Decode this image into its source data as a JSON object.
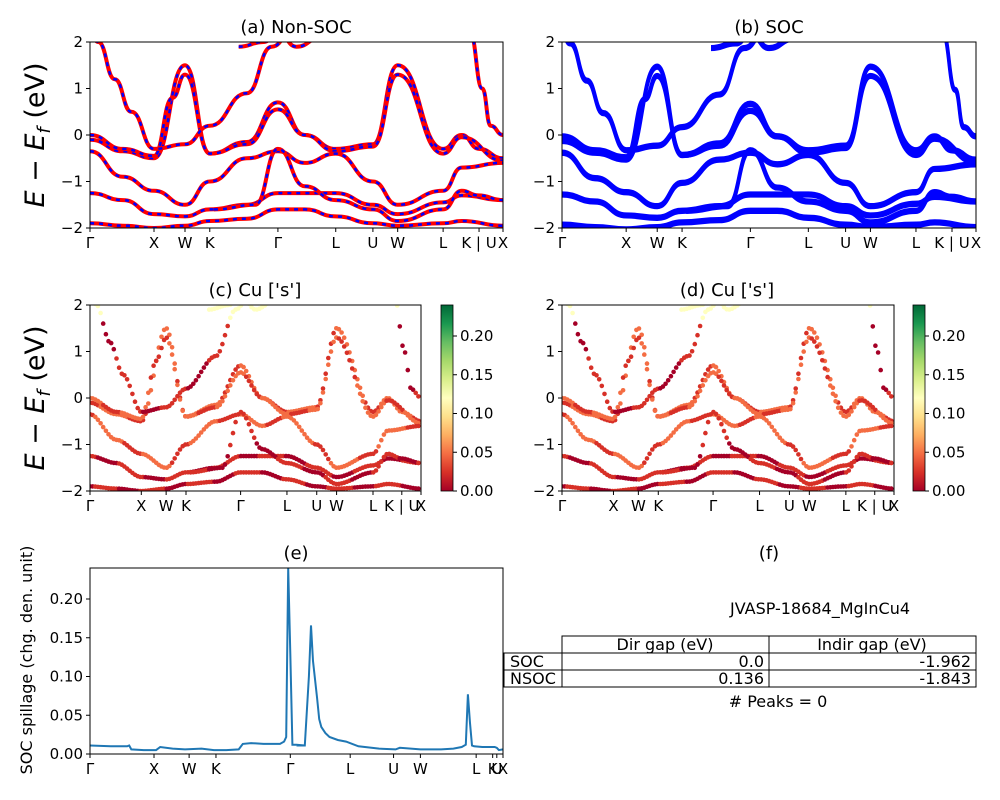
{
  "chart_data": [
    {
      "type": "line",
      "title": "(a) Non-SOC",
      "ylabel_main": "E − E",
      "ylabel_sub": "f",
      "ylabel_unit": " (eV)",
      "ylim": [
        -2,
        2
      ],
      "yticks": [
        "2",
        "1",
        "0",
        "−1",
        "−2"
      ],
      "xticks": [
        "Γ",
        "X",
        "W",
        "K",
        "Γ",
        "L",
        "U",
        "W",
        "L",
        "K | U",
        "X"
      ],
      "xtick_pos": [
        0,
        0.155,
        0.23,
        0.29,
        0.455,
        0.595,
        0.685,
        0.745,
        0.855,
        0.942,
        1.0
      ],
      "series_colors": [
        "#ff0000",
        "#0000ff"
      ],
      "line_style": "dashed overlay"
    },
    {
      "type": "line",
      "title": "(b) SOC",
      "ylim": [
        -2,
        2
      ],
      "yticks": [
        "2",
        "1",
        "0",
        "−1",
        "−2"
      ],
      "xticks": [
        "Γ",
        "X",
        "W",
        "K",
        "Γ",
        "L",
        "U",
        "W",
        "L",
        "K | U",
        "X"
      ],
      "xtick_pos": [
        0,
        0.155,
        0.23,
        0.29,
        0.455,
        0.595,
        0.685,
        0.745,
        0.855,
        0.942,
        1.0
      ],
      "series_colors": [
        "#0000ff"
      ]
    },
    {
      "type": "scatter",
      "title": "(c)  Cu ['s']",
      "ylabel_main": "E − E",
      "ylabel_sub": "f",
      "ylabel_unit": " (eV)",
      "ylim": [
        -2,
        2
      ],
      "yticks": [
        "2",
        "1",
        "0",
        "−1",
        "−2"
      ],
      "xticks": [
        "Γ",
        "X",
        "W",
        "K",
        "Γ",
        "L",
        "U",
        "W",
        "L",
        "K | U",
        "X"
      ],
      "xtick_pos": [
        0,
        0.155,
        0.23,
        0.29,
        0.455,
        0.595,
        0.685,
        0.745,
        0.855,
        0.942,
        1.0
      ],
      "colorbar": {
        "range": [
          0,
          0.24
        ],
        "ticks": [
          "0.00",
          "0.05",
          "0.10",
          "0.15",
          "0.20"
        ],
        "tick_values": [
          0,
          0.05,
          0.1,
          0.15,
          0.2
        ],
        "colormap": "RdYlGn"
      }
    },
    {
      "type": "scatter",
      "title": "(d) Cu ['s']",
      "ylim": [
        -2,
        2
      ],
      "yticks": [
        "2",
        "1",
        "0",
        "−1",
        "−2"
      ],
      "xticks": [
        "Γ",
        "X",
        "W",
        "K",
        "Γ",
        "L",
        "U",
        "W",
        "L",
        "K | U",
        "X"
      ],
      "xtick_pos": [
        0,
        0.155,
        0.23,
        0.29,
        0.455,
        0.595,
        0.685,
        0.745,
        0.855,
        0.942,
        1.0
      ],
      "colorbar": {
        "range": [
          0,
          0.24
        ],
        "ticks": [
          "0.00",
          "0.05",
          "0.10",
          "0.15",
          "0.20"
        ],
        "tick_values": [
          0,
          0.05,
          0.1,
          0.15,
          0.2
        ],
        "colormap": "RdYlGn"
      }
    },
    {
      "type": "line",
      "title": "(e)",
      "ylabel": "SOC spillage (chg. den. unit)",
      "ylim": [
        0,
        0.24
      ],
      "yticks": [
        "0.00",
        "0.05",
        "0.10",
        "0.15",
        "0.20"
      ],
      "ytick_values": [
        0,
        0.05,
        0.1,
        0.15,
        0.2
      ],
      "xticks": [
        "Γ",
        "X",
        "W",
        "K",
        "Γ",
        "L",
        "U",
        "W",
        "L",
        "K",
        "U",
        "X"
      ],
      "xtick_pos": [
        0,
        0.155,
        0.24,
        0.305,
        0.485,
        0.63,
        0.735,
        0.8,
        0.935,
        0.975,
        0.985,
        1.0
      ],
      "x": [
        0,
        0.05,
        0.09,
        0.095,
        0.1,
        0.13,
        0.16,
        0.17,
        0.2,
        0.23,
        0.27,
        0.3,
        0.33,
        0.36,
        0.37,
        0.39,
        0.42,
        0.44,
        0.46,
        0.47,
        0.475,
        0.48,
        0.485,
        0.49,
        0.5,
        0.52,
        0.5,
        0.52,
        0.53,
        0.535,
        0.54,
        0.55,
        0.555,
        0.56,
        0.57,
        0.58,
        0.6,
        0.62,
        0.65,
        0.7,
        0.74,
        0.75,
        0.8,
        0.85,
        0.88,
        0.9,
        0.91,
        0.915,
        0.92,
        0.925,
        0.93,
        0.95,
        0.97,
        0.98,
        0.985,
        0.99,
        1.0
      ],
      "y": [
        0.011,
        0.01,
        0.01,
        0.011,
        0.006,
        0.005,
        0.005,
        0.009,
        0.007,
        0.006,
        0.007,
        0.005,
        0.005,
        0.006,
        0.013,
        0.014,
        0.013,
        0.013,
        0.013,
        0.016,
        0.022,
        0.24,
        0.13,
        0.012,
        0.012,
        0.011,
        0.011,
        0.011,
        0.1,
        0.166,
        0.12,
        0.072,
        0.045,
        0.035,
        0.027,
        0.022,
        0.018,
        0.016,
        0.01,
        0.007,
        0.006,
        0.008,
        0.006,
        0.006,
        0.007,
        0.009,
        0.012,
        0.077,
        0.04,
        0.011,
        0.01,
        0.009,
        0.009,
        0.009,
        0.008,
        0.005,
        0.006
      ],
      "color": "#1f77b4"
    },
    {
      "type": "table",
      "title": "(f)",
      "material": "JVASP-18684_MgInCu4",
      "columns": [
        "Dir gap (eV)",
        "Indir gap (eV)"
      ],
      "rows": [
        {
          "label": "SOC",
          "values": [
            "0.0",
            "-1.962"
          ]
        },
        {
          "label": "NSOC",
          "values": [
            "0.136",
            "-1.843"
          ]
        }
      ],
      "peaks": "# Peaks = 0"
    }
  ]
}
